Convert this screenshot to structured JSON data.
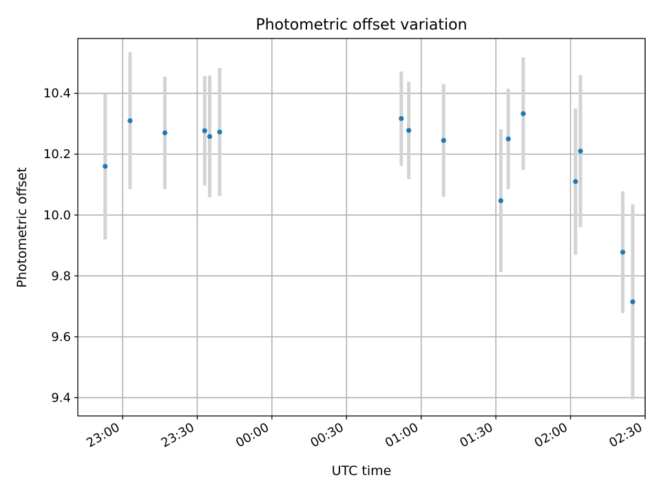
{
  "chart_data": {
    "type": "scatter",
    "title": "Photometric offset variation",
    "xlabel": "UTC time",
    "ylabel": "Photometric offset",
    "x_axis": "time",
    "xlim": [
      "22:42",
      "02:30"
    ],
    "ylim": [
      9.34,
      10.58
    ],
    "xticks": [
      "23:00",
      "23:30",
      "00:00",
      "00:30",
      "01:00",
      "01:30",
      "02:00",
      "02:30"
    ],
    "yticks": [
      "9.4",
      "9.6",
      "9.8",
      "10.0",
      "10.2",
      "10.4"
    ],
    "grid": true,
    "point_color": "#1f77b4",
    "errorbar_color": "#d3d3d3",
    "points": [
      {
        "x": "22:53",
        "y": 10.16,
        "err": 0.24
      },
      {
        "x": "23:03",
        "y": 10.31,
        "err": 0.225
      },
      {
        "x": "23:17",
        "y": 10.27,
        "err": 0.185
      },
      {
        "x": "23:33",
        "y": 10.277,
        "err": 0.18
      },
      {
        "x": "23:35",
        "y": 10.258,
        "err": 0.2
      },
      {
        "x": "23:39",
        "y": 10.273,
        "err": 0.21
      },
      {
        "x": "00:52",
        "y": 10.317,
        "err": 0.155
      },
      {
        "x": "00:55",
        "y": 10.278,
        "err": 0.16
      },
      {
        "x": "01:09",
        "y": 10.245,
        "err": 0.185
      },
      {
        "x": "01:32",
        "y": 10.047,
        "err": 0.235
      },
      {
        "x": "01:35",
        "y": 10.25,
        "err": 0.165
      },
      {
        "x": "01:41",
        "y": 10.333,
        "err": 0.185
      },
      {
        "x": "02:02",
        "y": 10.11,
        "err": 0.24
      },
      {
        "x": "02:04",
        "y": 10.21,
        "err": 0.25
      },
      {
        "x": "02:21",
        "y": 9.878,
        "err": 0.2
      },
      {
        "x": "02:25",
        "y": 9.715,
        "err": 0.32
      }
    ]
  }
}
